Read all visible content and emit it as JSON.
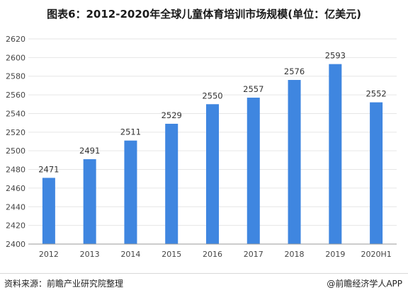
{
  "title": "图表6：2012-2020年全球儿童体育培训市场规模(单位：亿美元)",
  "footer": {
    "source": "资料来源：前瞻产业研究院整理",
    "brand": "@前瞻经济学人APP"
  },
  "colors": {
    "bar": "#3f86e0",
    "grid": "#e6e6e6",
    "axis": "#999999"
  },
  "chart_data": {
    "type": "bar",
    "title": "图表6：2012-2020年全球儿童体育培训市场规模(单位：亿美元)",
    "xlabel": "",
    "ylabel": "",
    "categories": [
      "2012",
      "2013",
      "2014",
      "2015",
      "2016",
      "2017",
      "2018",
      "2019",
      "2020H1"
    ],
    "values": [
      2471,
      2491,
      2511,
      2529,
      2550,
      2557,
      2576,
      2593,
      2552
    ],
    "ylim": [
      2400,
      2620
    ],
    "yticks": [
      2400,
      2420,
      2440,
      2460,
      2480,
      2500,
      2520,
      2540,
      2560,
      2580,
      2600,
      2620
    ],
    "grid": true,
    "legend": "none"
  }
}
